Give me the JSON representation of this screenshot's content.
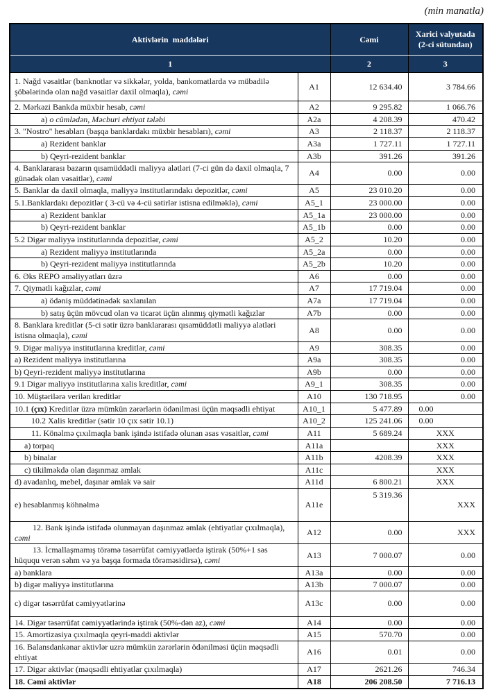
{
  "note": "(min manatla)",
  "table": {
    "colors": {
      "header_bg": "#17375e",
      "header_text": "#ffffff",
      "border": "#000000",
      "body_text": "#1a1a1a"
    },
    "header": {
      "col1": "Aktivlərin  maddələri",
      "col2": "Cəmi",
      "col3": "Xarici valyutada (2-ci sütundan)",
      "num1": "1",
      "num2": "2",
      "num3": "3"
    },
    "rows": [
      {
        "main": "1. Nağd vəsaitlər (banknotlar və sikkələr, yolda, bankomatlarda və mübadilə şöbələrində olan nağd vəsaitlər daxil olmaqla), ",
        "italic": "cəmi",
        "code": "A1",
        "cemi": "12 634.40",
        "xarici": "3 784.66",
        "cls": "tall38"
      },
      {
        "main": "2. Mərkəzi Bankda müxbir hesab, ",
        "italic": "cəmi",
        "code": "A2",
        "cemi": "9 295.82",
        "xarici": "1 066.76",
        "cls": ""
      },
      {
        "main": "a) ",
        "italic": "o cümlədən, Məcburi ehtiyat tələbi",
        "code": "A2a",
        "cemi": "4 208.39",
        "xarici": "470.42",
        "cls": "deep"
      },
      {
        "main": "3. \"Nostro\" hesabları (başqa banklardakı müxbir hesabları), ",
        "italic": "cəmi",
        "code": "A3",
        "cemi": "2 118.37",
        "xarici": "2 118.37",
        "cls": ""
      },
      {
        "main": "a) Rezident banklar",
        "italic": "",
        "code": "A3a",
        "cemi": "1 727.11",
        "xarici": "1 727.11",
        "cls": "deep"
      },
      {
        "main": "b) Qeyri-rezident banklar",
        "italic": "",
        "code": "A3b",
        "cemi": "391.26",
        "xarici": "391.26",
        "cls": "deep"
      },
      {
        "main": "4. Banklararası bazarın qısamüddətli maliyyə alətləri (7-ci gün də daxil olmaqla, 7 günədək olan vəsaitlər), ",
        "italic": "cəmi",
        "code": "A4",
        "cemi": "0.00",
        "xarici": "0.00",
        "cls": ""
      },
      {
        "main": "5. Banklar da daxil olmaqla, maliyyə institutlarındakı depozitlər, ",
        "italic": "cəmi",
        "code": "A5",
        "cemi": "23 010.20",
        "xarici": "0.00",
        "cls": ""
      },
      {
        "main": "5.1.Banklardakı depozitlər ( 3-cü və 4-cü sətirlər istisna edilməklə), ",
        "italic": "cəmi",
        "code": "A5_1",
        "cemi": "23 000.00",
        "xarici": "0.00",
        "cls": ""
      },
      {
        "main": "a) Rezident banklar",
        "italic": "",
        "code": "A5_1a",
        "cemi": "23 000.00",
        "xarici": "0.00",
        "cls": "deep"
      },
      {
        "main": "b) Qeyri-rezident banklar",
        "italic": "",
        "code": "A5_1b",
        "cemi": "0.00",
        "xarici": "0.00",
        "cls": "deep"
      },
      {
        "main": "5.2 Digər maliyyə institutlarında depozitlər, ",
        "italic": "cəmi",
        "code": "A5_2",
        "cemi": "10.20",
        "xarici": "0.00",
        "cls": ""
      },
      {
        "main": "a) Rezident maliyyə institutlarında",
        "italic": "",
        "code": "A5_2a",
        "cemi": "0.00",
        "xarici": "0.00",
        "cls": "deep"
      },
      {
        "main": "b) Qeyri-rezident maliyyə institutlarında",
        "italic": "",
        "code": "A5_2b",
        "cemi": "10.20",
        "xarici": "0.00",
        "cls": "deep"
      },
      {
        "main": "6. Əks REPO əməliyyatları üzrə",
        "italic": "",
        "code": "A6",
        "cemi": "0.00",
        "xarici": "0.00",
        "cls": ""
      },
      {
        "main": "7. Qiymətli kağızlar, ",
        "italic": "cəmi",
        "code": "A7",
        "cemi": "17 719.04",
        "xarici": "0.00",
        "cls": ""
      },
      {
        "main": "a) ödəniş müddətinədək saxlanılan",
        "italic": "",
        "code": "A7a",
        "cemi": "17 719.04",
        "xarici": "0.00",
        "cls": "deep"
      },
      {
        "main": "b) satış üçün mövcud olan  və ticarət üçün alınmış qiymətli kağızlar",
        "italic": "",
        "code": "A7b",
        "cemi": "0.00",
        "xarici": "0.00",
        "cls": "deep"
      },
      {
        "main": "8. Banklara kreditlər (5-ci sətir üzrə banklararası qısamüddətli maliyyə alətləri istisna olmaqla), ",
        "italic": "cəmi",
        "code": "A8",
        "cemi": "0.00",
        "xarici": "0.00",
        "cls": ""
      },
      {
        "main": "9. Digər maliyyə institutlarına kreditlər, ",
        "italic": "cəmi",
        "code": "A9",
        "cemi": "308.35",
        "xarici": "0.00",
        "cls": ""
      },
      {
        "main": "a) Rezident maliyyə institutlarına",
        "italic": "",
        "code": "A9a",
        "cemi": "308.35",
        "xarici": "0.00",
        "cls": ""
      },
      {
        "main": "b) Qeyri-rezident maliyyə institutlarına",
        "italic": "",
        "code": "A9b",
        "cemi": "0.00",
        "xarici": "0.00",
        "cls": ""
      },
      {
        "main": "9.1 Digər maliyyə institutlarına xalis kreditlər, ",
        "italic": "cəmi",
        "code": "A9_1",
        "cemi": "308.35",
        "xarici": "0.00",
        "cls": ""
      },
      {
        "main": "10. Müştərilərə verilən kreditlər",
        "italic": "",
        "code": "A10",
        "cemi": "130 718.95",
        "xarici": "0.00",
        "cls": ""
      },
      {
        "pre": "10.1 ",
        "boldpart": "(çıx)",
        "main": " Kreditlər üzrə mümkün zərərlərin ödənilməsi üçün məqsədli ehtiyat",
        "italic": "",
        "code": "A10_1",
        "cemi": "5 477.89",
        "xarici": "0.00",
        "cls": "xleft"
      },
      {
        "main": "10.2 Xalis kreditlər (sətir 10 çıx sətir 10.1)",
        "italic": "",
        "code": "A10_2",
        "cemi": "125 241.06",
        "xarici": "0.00",
        "cls": "mid xleft"
      },
      {
        "main": "11. Könəlmə çıxılmaqla bank işində istifadə olunan əsas vəsaitlər, ",
        "italic": "cəmi",
        "code": "A11",
        "cemi": "5 689.24",
        "xarici": "XXX",
        "cls": "mid xcenter"
      },
      {
        "main": "a) torpaq",
        "italic": "",
        "code": "A11a",
        "cemi": "",
        "xarici": "XXX",
        "cls": "small xcenter"
      },
      {
        "main": "b) binalar",
        "italic": "",
        "code": "A11b",
        "cemi": "4208.39",
        "xarici": "XXX",
        "cls": "small xcenter"
      },
      {
        "main": "c) tikilməkdə olan daşınmaz əmlak",
        "italic": "",
        "code": "A11c",
        "cemi": "",
        "xarici": "XXX",
        "cls": "small xcenter"
      },
      {
        "main": "d) avadanlıq, mebel, daşınar əmlak və sair",
        "italic": "",
        "code": "A11d",
        "cemi": "6 800.21",
        "xarici": "XXX",
        "cls": "xcenter"
      },
      {
        "main": "e) hesablanmış köhnəlmə",
        "italic": "",
        "code": "A11e",
        "cemi": "5 319.36",
        "xarici": "XXX",
        "cls": "tall44 cemitop"
      },
      {
        "main": "12. Bank işində istifadə olunmayan daşınmaz əmlak (ehtiyatlar çıxılmaqla), ",
        "italic": "cəmi",
        "code": "A12",
        "cemi": "0.00",
        "xarici": "XXX",
        "cls": "firstline"
      },
      {
        "main": "13. İcmallaşmamış törəmə təsərrüfat cəmiyyətlərdə iştirak (50%+1 səs hüququ verən səhm və ya başqa formada törəməsidirsə), ",
        "italic": "cəmi",
        "code": "A13",
        "cemi": "7 000.07",
        "xarici": "0.00",
        "cls": "firstline"
      },
      {
        "main": "a) banklara",
        "italic": "",
        "code": "A13a",
        "cemi": "0.00",
        "xarici": "0.00",
        "cls": ""
      },
      {
        "main": "b) digər maliyyə institutlarına",
        "italic": "",
        "code": "A13b",
        "cemi": "7 000.07",
        "xarici": "0.00",
        "cls": ""
      },
      {
        "main": "c) digər təsərrüfat cəmiyyətlərinə",
        "italic": "",
        "code": "A13c",
        "cemi": "0.00",
        "xarici": "0.00",
        "cls": "tall34"
      },
      {
        "main": "14. Digər təsərrüfat cəmiyyətlərində iştirak (50%-dən az), ",
        "italic": "cəmi",
        "code": "A14",
        "cemi": "0.00",
        "xarici": "0.00",
        "cls": ""
      },
      {
        "main": "15. Amortizasiya çıxılmaqla qeyri-maddi aktivlər",
        "italic": "",
        "code": "A15",
        "cemi": "570.70",
        "xarici": "0.00",
        "cls": ""
      },
      {
        "main": "16. Balansdankənar aktivlər uzrə mümkün zərərlərin ödənilməsi üçün məqsədli ehtiyat",
        "italic": "",
        "code": "A16",
        "cemi": "0.01",
        "xarici": "0.00",
        "cls": ""
      },
      {
        "main": "17. Digər aktivlər (məqsədli ehtiyatlar çıxılmaqla)",
        "italic": "",
        "code": "A17",
        "cemi": "2621.26",
        "xarici": "746.34",
        "cls": ""
      },
      {
        "main": "18. Cəmi aktivlər",
        "italic": "",
        "code": "A18",
        "cemi": "206 208.50",
        "xarici": "7 716.13",
        "cls": "bold"
      }
    ]
  }
}
